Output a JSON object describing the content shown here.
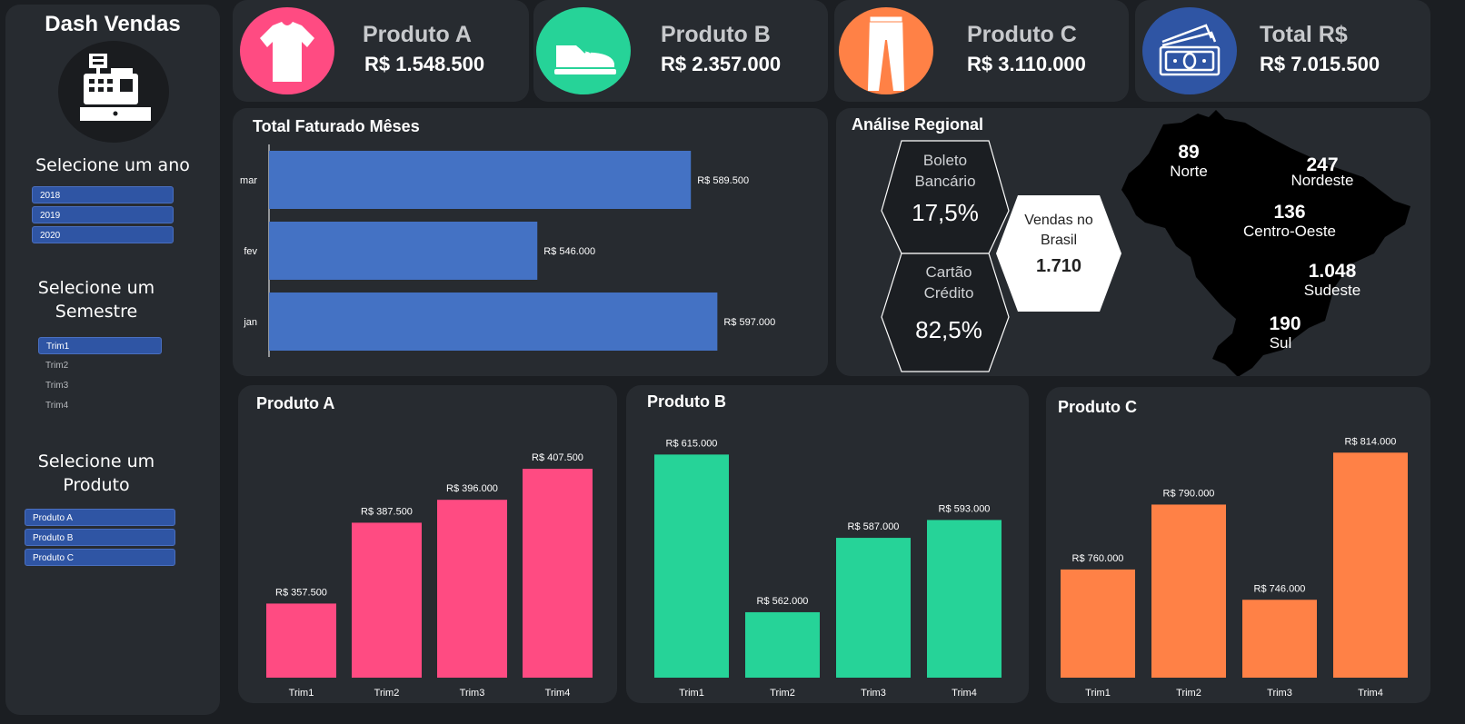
{
  "sidebar": {
    "title": "Dash Vendas",
    "year_heading": "Selecione um ano",
    "years": [
      "2018",
      "2019",
      "2020"
    ],
    "semester_heading_line1": "Selecione um",
    "semester_heading_line2": "Semestre",
    "quarters": [
      {
        "label": "Trim1",
        "selected": true
      },
      {
        "label": "Trim2",
        "selected": false
      },
      {
        "label": "Trim3",
        "selected": false
      },
      {
        "label": "Trim4",
        "selected": false
      }
    ],
    "product_heading_line1": "Selecione um",
    "product_heading_line2": "Produto",
    "products": [
      "Produto A",
      "Produto B",
      "Produto C"
    ]
  },
  "cards": [
    {
      "name": "Produto A",
      "value": "R$ 1.548.500",
      "icon": "t-shirt-icon",
      "color": "#ff4b82"
    },
    {
      "name": "Produto B",
      "value": "R$ 2.357.000",
      "icon": "shoe-icon",
      "color": "#26d398"
    },
    {
      "name": "Produto C",
      "value": "R$ 3.110.000",
      "icon": "pants-icon",
      "color": "#ff8146"
    },
    {
      "name": "Total R$",
      "value": "R$ 7.015.500",
      "icon": "money-icon",
      "color": "#2f55a4"
    }
  ],
  "regional": {
    "title": "Análise Regional",
    "boleto_line1": "Boleto",
    "boleto_line2": "Bancário",
    "boleto_value": "17,5%",
    "cartao_line1": "Cartão",
    "cartao_line2": "Crédito",
    "cartao_value": "82,5%",
    "total_line1": "Vendas no",
    "total_line2": "Brasil",
    "total_value": "1.710",
    "regions": [
      {
        "value": "89",
        "name": "Norte"
      },
      {
        "value": "247",
        "name": "Nordeste"
      },
      {
        "value": "136",
        "name": "Centro-Oeste"
      },
      {
        "value": "1.048",
        "name": "Sudeste"
      },
      {
        "value": "190",
        "name": "Sul"
      }
    ]
  },
  "chart_data": [
    {
      "type": "bar",
      "orientation": "horizontal",
      "title": "Total Faturado Mêses",
      "categories": [
        "mar",
        "fev",
        "jan"
      ],
      "values": [
        589500,
        546000,
        597000
      ],
      "labels": [
        "R$ 589.500",
        "R$ 546.000",
        "R$ 597.000"
      ],
      "xlim": [
        470000,
        600000
      ],
      "color": "#4472c4"
    },
    {
      "type": "bar",
      "title": "Produto A",
      "categories": [
        "Trim1",
        "Trim2",
        "Trim3",
        "Trim4"
      ],
      "values": [
        357500,
        387500,
        396000,
        407500
      ],
      "labels": [
        "R$ 357.500",
        "R$ 387.500",
        "R$ 396.000",
        "R$ 407.500"
      ],
      "ylim": [
        330000,
        420000
      ],
      "color": "#ff4b82"
    },
    {
      "type": "bar",
      "title": "Produto B",
      "categories": [
        "Trim1",
        "Trim2",
        "Trim3",
        "Trim4"
      ],
      "values": [
        615000,
        562000,
        587000,
        593000
      ],
      "labels": [
        "R$ 615.000",
        "R$ 562.000",
        "R$ 587.000",
        "R$ 593.000"
      ],
      "ylim": [
        540000,
        620000
      ],
      "color": "#26d398"
    },
    {
      "type": "bar",
      "title": "Produto C",
      "categories": [
        "Trim1",
        "Trim2",
        "Trim3",
        "Trim4"
      ],
      "values": [
        760000,
        790000,
        746000,
        814000
      ],
      "labels": [
        "R$ 760.000",
        "R$ 790.000",
        "R$ 746.000",
        "R$ 814.000"
      ],
      "ylim": [
        710000,
        820000
      ],
      "color": "#ff8146"
    }
  ]
}
